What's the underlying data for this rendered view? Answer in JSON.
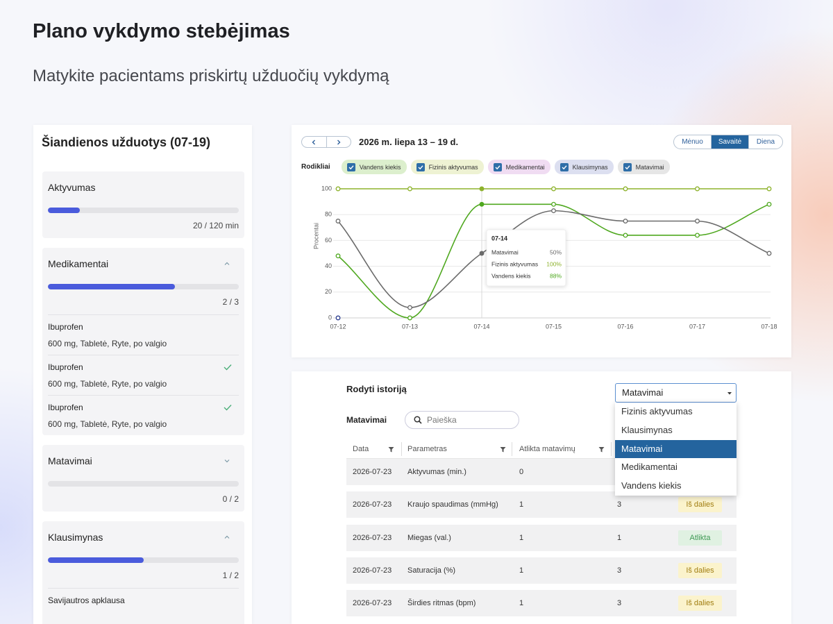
{
  "header": {
    "title": "Plano vykdymo stebėjimas",
    "subtitle": "Matykite pacientams priskirtų užduočių vykdymą"
  },
  "today": {
    "title": "Šiandienos užduotys (07-19)",
    "bar_color": "#4a5bdc",
    "tasks": [
      {
        "name": "Aktyvumas",
        "done": 20,
        "total": 120,
        "progress_label": "20 / 120 min"
      },
      {
        "name": "Medikamentai",
        "expanded": true,
        "done": 2,
        "total": 3,
        "progress_label": "2 / 3",
        "items": [
          {
            "name": "Ibuprofen",
            "detail": "600 mg, Tabletė, Ryte, po valgio",
            "completed": false
          },
          {
            "name": "Ibuprofen",
            "detail": "600 mg, Tabletė, Ryte, po valgio",
            "completed": true
          },
          {
            "name": "Ibuprofen",
            "detail": "600 mg, Tabletė, Ryte, po valgio",
            "completed": true
          }
        ]
      },
      {
        "name": "Matavimai",
        "expanded": false,
        "done": 0,
        "total": 2,
        "progress_label": "0 / 2"
      },
      {
        "name": "Klausimynas",
        "expanded": true,
        "done": 1,
        "total": 2,
        "progress_label": "1 / 2",
        "items": [
          {
            "name": "Savijautros apklausa"
          }
        ]
      }
    ]
  },
  "toolbar": {
    "period": "2026 m. liepa 13 – 19 d.",
    "views": [
      "Mėnuo",
      "Savaitė",
      "Diena"
    ],
    "active_view": 1,
    "legend_title": "Rodikliai"
  },
  "chart_data": {
    "type": "line",
    "y_label": "Procentai",
    "categories": [
      "07-12",
      "07-13",
      "07-14",
      "07-15",
      "07-16",
      "07-17",
      "07-18"
    ],
    "ylim": [
      0,
      100
    ],
    "yticks": [
      0,
      20,
      40,
      60,
      80,
      100
    ],
    "grid": true,
    "highlight_index": 2,
    "series": [
      {
        "name": "Vandens kiekis",
        "color": "#4fa81f",
        "chip_color": "#dcefcd",
        "values": [
          48,
          0,
          88,
          88,
          64,
          64,
          88
        ]
      },
      {
        "name": "Fizinis aktyvumas",
        "color": "#8db22c",
        "chip_color": "#eef2d3",
        "values": [
          100,
          100,
          100,
          100,
          100,
          100,
          100
        ]
      },
      {
        "name": "Medikamentai",
        "color": "#a25bb3",
        "chip_color": "#f0dcf2",
        "values": [
          null,
          null,
          null,
          null,
          null,
          null,
          null
        ]
      },
      {
        "name": "Klausimynas",
        "color": "#2b3d8f",
        "chip_color": "#dcdff0",
        "values": [
          0,
          null,
          null,
          null,
          null,
          null,
          null
        ]
      },
      {
        "name": "Matavimai",
        "color": "#6b6b6b",
        "chip_color": "#e6e6e6",
        "values": [
          75,
          8,
          50,
          83,
          75,
          75,
          50
        ]
      }
    ],
    "tooltip": {
      "title": "07-14",
      "rows": [
        {
          "name": "Matavimai",
          "value": "50%",
          "color": "#6b6b6b"
        },
        {
          "name": "Fizinis aktyvumas",
          "value": "100%",
          "color": "#8db22c"
        },
        {
          "name": "Vandens kiekis",
          "value": "88%",
          "color": "#4fa81f"
        }
      ]
    }
  },
  "history": {
    "title": "Rodyti istoriją",
    "select": {
      "value": "Matavimai",
      "options": [
        "Fizinis aktyvumas",
        "Klausimynas",
        "Matavimai",
        "Medikamentai",
        "Vandens kiekis"
      ],
      "selected_index": 2
    },
    "table_title": "Matavimai",
    "search_placeholder": "Paieška",
    "columns": [
      "Data",
      "Parametras",
      "Atlikta matavimų"
    ],
    "rows": [
      {
        "cells": [
          "2026-07-23",
          "Aktyvumas (min.)",
          0
        ]
      },
      {
        "cells": [
          "2026-07-23",
          "Kraujo spaudimas (mmHg)",
          1,
          3
        ],
        "status": "Iš dalies",
        "status_color": "#a07d10",
        "status_bg": "#fbf3cc"
      },
      {
        "cells": [
          "2026-07-23",
          "Miegas (val.)",
          1,
          1
        ],
        "status": "Atlikta",
        "status_color": "#3f9a55",
        "status_bg": "#e0f1e2"
      },
      {
        "cells": [
          "2026-07-23",
          "Saturacija (%)",
          1,
          3
        ],
        "status": "Iš dalies",
        "status_color": "#a07d10",
        "status_bg": "#fbf3cc"
      },
      {
        "cells": [
          "2026-07-23",
          "Širdies ritmas (bpm)",
          1,
          3
        ],
        "status": "Iš dalies",
        "status_color": "#a07d10",
        "status_bg": "#fbf3cc"
      }
    ]
  }
}
